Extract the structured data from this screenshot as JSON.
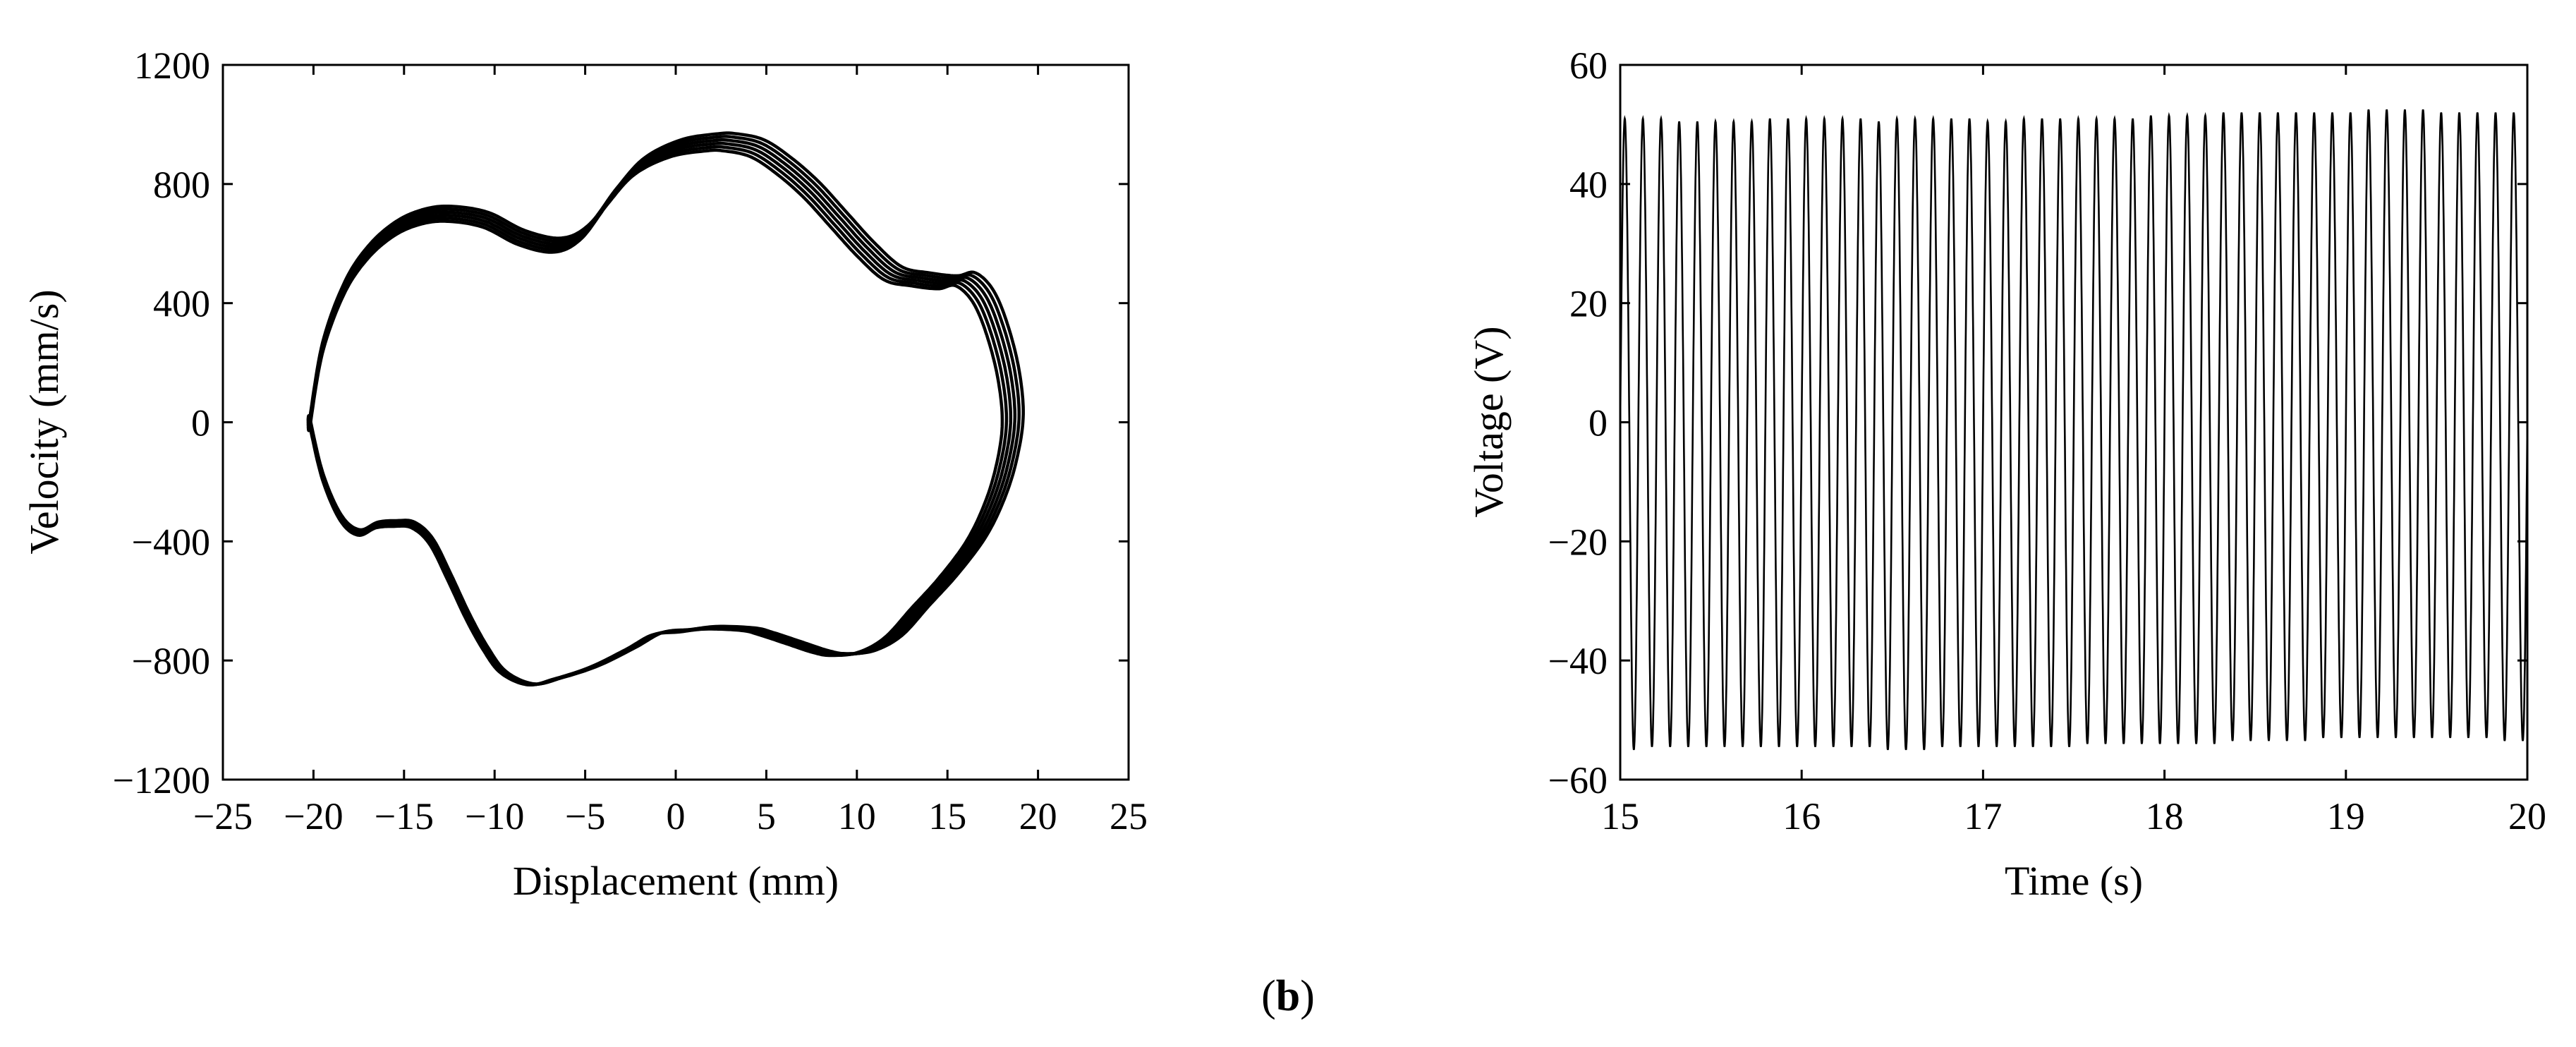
{
  "caption": {
    "open": "(",
    "label": "b",
    "close": ")"
  },
  "chart_data": [
    {
      "type": "line",
      "subtype": "phase-portrait",
      "xlabel": "Displacement (mm)",
      "ylabel": "Velocity (mm/s)",
      "xlim": [
        -25,
        25
      ],
      "ylim": [
        -1200,
        1200
      ],
      "xticks": [
        -25,
        -20,
        -15,
        -10,
        -5,
        0,
        5,
        10,
        15,
        20,
        25
      ],
      "yticks": [
        -1200,
        -800,
        -400,
        0,
        400,
        800,
        1200
      ],
      "xtick_labels": [
        "−25",
        "−20",
        "−15",
        "−10",
        "−5",
        "0",
        "5",
        "10",
        "15",
        "20",
        "25"
      ],
      "ytick_labels": [
        "−1200",
        "−800",
        "−400",
        "0",
        "400",
        "800",
        "1200"
      ],
      "grid": false,
      "closed": true,
      "loops": 6,
      "line_color": "#000000",
      "x": [
        -20.2,
        -19.5,
        -18.3,
        -17.0,
        -15.5,
        -14.0,
        -12.5,
        -10.5,
        -8.5,
        -6.5,
        -5.0,
        -3.5,
        -2.0,
        0.0,
        2.0,
        3.0,
        4.5,
        6.0,
        7.5,
        9.0,
        10.5,
        12.0,
        13.5,
        15.0,
        16.0,
        17.0,
        17.8,
        18.4,
        18.6,
        18.2,
        17.5,
        16.5,
        15.0,
        13.5,
        12.0,
        10.5,
        9.0,
        8.0,
        6.5,
        5.0,
        4.0,
        2.0,
        0.5,
        -1.0,
        -2.5,
        -4.5,
        -6.5,
        -8.0,
        -9.5,
        -10.5,
        -11.5,
        -12.5,
        -13.5,
        -14.5,
        -15.5,
        -16.5,
        -17.5,
        -18.5,
        -19.5,
        -20.2
      ],
      "y": [
        0,
        250,
        450,
        570,
        650,
        690,
        700,
        680,
        620,
        595,
        640,
        760,
        860,
        920,
        940,
        940,
        920,
        860,
        780,
        680,
        580,
        500,
        480,
        470,
        480,
        420,
        300,
        150,
        0,
        -150,
        -280,
        -400,
        -520,
        -620,
        -720,
        -770,
        -780,
        -770,
        -740,
        -710,
        -695,
        -690,
        -700,
        -710,
        -760,
        -820,
        -860,
        -880,
        -840,
        -760,
        -650,
        -520,
        -400,
        -345,
        -340,
        -345,
        -370,
        -320,
        -180,
        0
      ]
    },
    {
      "type": "line",
      "xlabel": "Time (s)",
      "ylabel": "Voltage (V)",
      "xlim": [
        15,
        20
      ],
      "ylim": [
        -60,
        60
      ],
      "xticks": [
        15,
        16,
        17,
        18,
        19,
        20
      ],
      "yticks": [
        -60,
        -40,
        -20,
        0,
        20,
        40,
        60
      ],
      "xtick_labels": [
        "15",
        "16",
        "17",
        "18",
        "19",
        "20"
      ],
      "ytick_labels": [
        "−60",
        "−40",
        "−20",
        "0",
        "20",
        "40",
        "60"
      ],
      "grid": false,
      "frequency_hz": 10,
      "cycles": 50,
      "peaks_max": [
        51.0,
        51.0,
        51.0,
        50.5,
        50.5,
        50.5,
        50.5,
        50.5,
        51.0,
        51.0,
        51.0,
        51.0,
        51.0,
        51.0,
        50.5,
        51.0,
        51.0,
        51.0,
        51.0,
        51.0,
        50.5,
        50.5,
        51.0,
        51.0,
        51.0,
        51.0,
        51.0,
        51.0,
        51.0,
        51.5,
        51.5,
        51.5,
        51.5,
        52.0,
        52.0,
        52.0,
        52.0,
        52.0,
        52.0,
        52.0,
        52.0,
        52.5,
        52.5,
        52.5,
        52.5,
        52.0,
        52.0,
        52.0,
        52.0,
        52.0
      ],
      "peaks_min": [
        -55.0,
        -54.5,
        -54.5,
        -54.5,
        -54.5,
        -54.5,
        -54.5,
        -54.5,
        -54.5,
        -54.5,
        -54.5,
        -54.5,
        -54.5,
        -54.5,
        -55.0,
        -55.0,
        -55.0,
        -54.5,
        -54.5,
        -54.5,
        -54.5,
        -54.5,
        -54.5,
        -54.5,
        -54.5,
        -54.0,
        -54.0,
        -54.0,
        -54.0,
        -54.0,
        -54.0,
        -54.0,
        -54.0,
        -53.5,
        -53.5,
        -53.5,
        -53.5,
        -53.5,
        -53.0,
        -53.0,
        -53.0,
        -53.0,
        -53.0,
        -53.0,
        -53.0,
        -53.0,
        -53.0,
        -53.0,
        -53.5,
        -53.5
      ],
      "line_color": "#000000"
    }
  ]
}
